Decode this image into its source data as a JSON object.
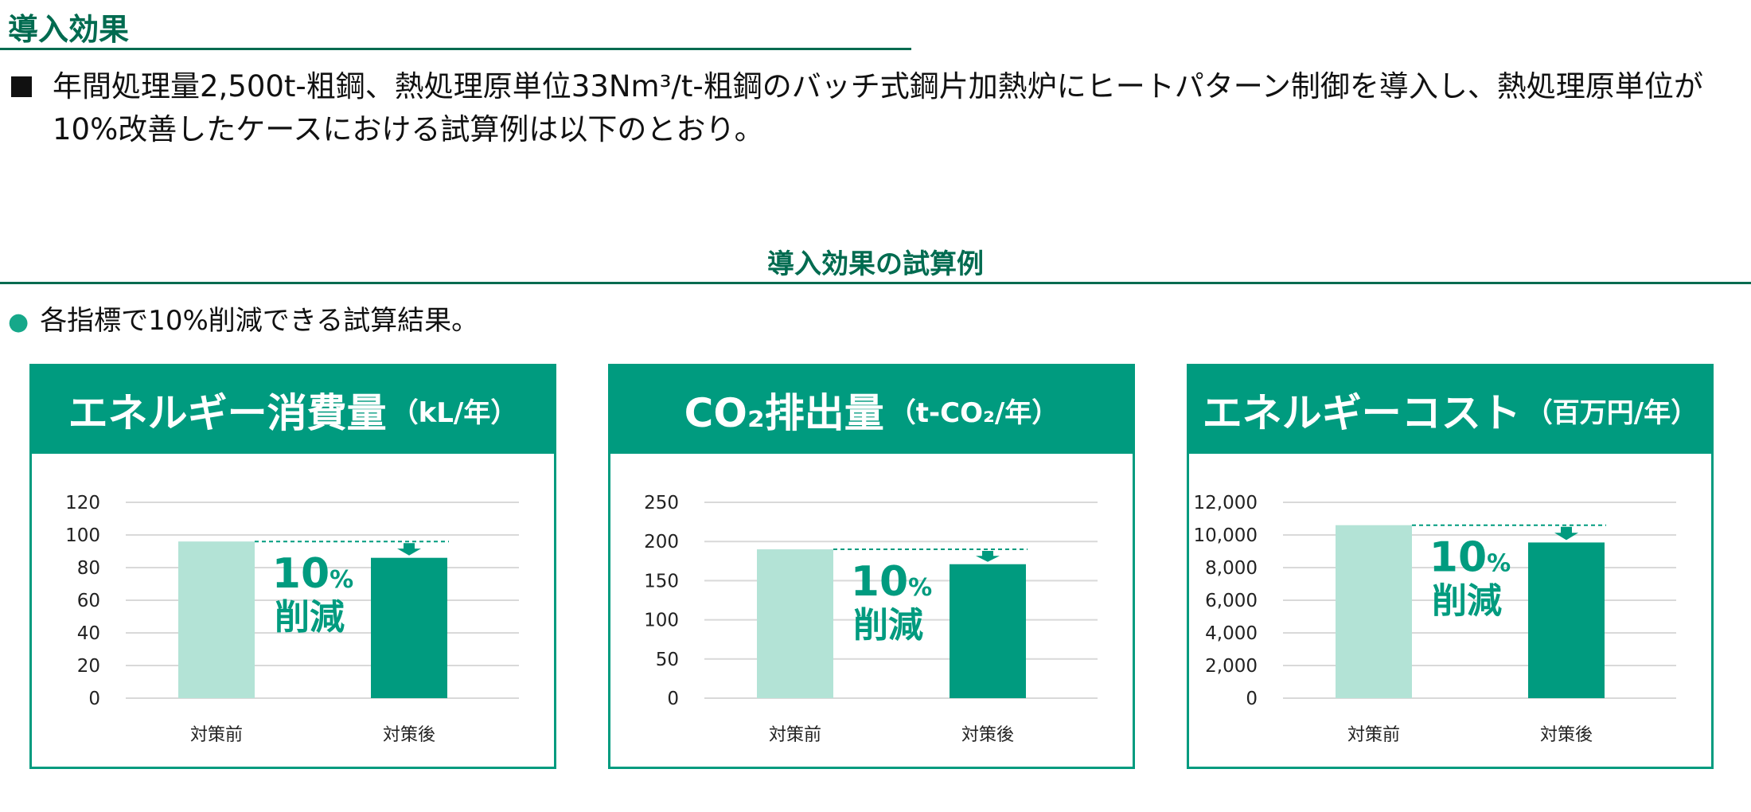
{
  "header": {
    "title": "導入効果",
    "lead_text": "年間処理量2,500t-粗鋼、熱処理原単位33Nm³/t-粗鋼のバッチ式鋼片加熱炉にヒートパターン制御を導入し、熱処理原単位が10%改善したケースにおける試算例は以下のとおり。"
  },
  "section": {
    "title": "導入効果の試算例",
    "subtitle": "各指標で10%削減できる試算結果。"
  },
  "colors": {
    "accent": "#009b7f",
    "dark_green": "#006b50",
    "before_bar": "#b3e3d6",
    "after_bar": "#009b7f",
    "grid": "#d9d9d9"
  },
  "reduction_label": {
    "number": "10",
    "percent": "%",
    "word": "削減"
  },
  "chart_data": [
    {
      "type": "bar",
      "title": "エネルギー消費量",
      "unit": "（kL/年）",
      "categories": [
        "対策前",
        "対策後"
      ],
      "values": [
        96,
        86
      ],
      "ylim": [
        0,
        120
      ],
      "yticks": [
        "0",
        "20",
        "40",
        "60",
        "80",
        "100",
        "120"
      ],
      "ytick_values": [
        0,
        20,
        40,
        60,
        80,
        100,
        120
      ],
      "grid": true
    },
    {
      "type": "bar",
      "title": "CO₂排出量",
      "unit": "（t-CO₂/年）",
      "categories": [
        "対策前",
        "対策後"
      ],
      "values": [
        190,
        171
      ],
      "ylim": [
        0,
        250
      ],
      "yticks": [
        "0",
        "50",
        "100",
        "150",
        "200",
        "250"
      ],
      "ytick_values": [
        0,
        50,
        100,
        150,
        200,
        250
      ],
      "grid": true
    },
    {
      "type": "bar",
      "title": "エネルギーコスト",
      "unit": "（百万円/年）",
      "categories": [
        "対策前",
        "対策後"
      ],
      "values": [
        10600,
        9540
      ],
      "ylim": [
        0,
        12000
      ],
      "yticks": [
        "0",
        "2,000",
        "4,000",
        "6,000",
        "8,000",
        "10,000",
        "12,000"
      ],
      "ytick_values": [
        0,
        2000,
        4000,
        6000,
        8000,
        10000,
        12000
      ],
      "grid": true
    }
  ]
}
